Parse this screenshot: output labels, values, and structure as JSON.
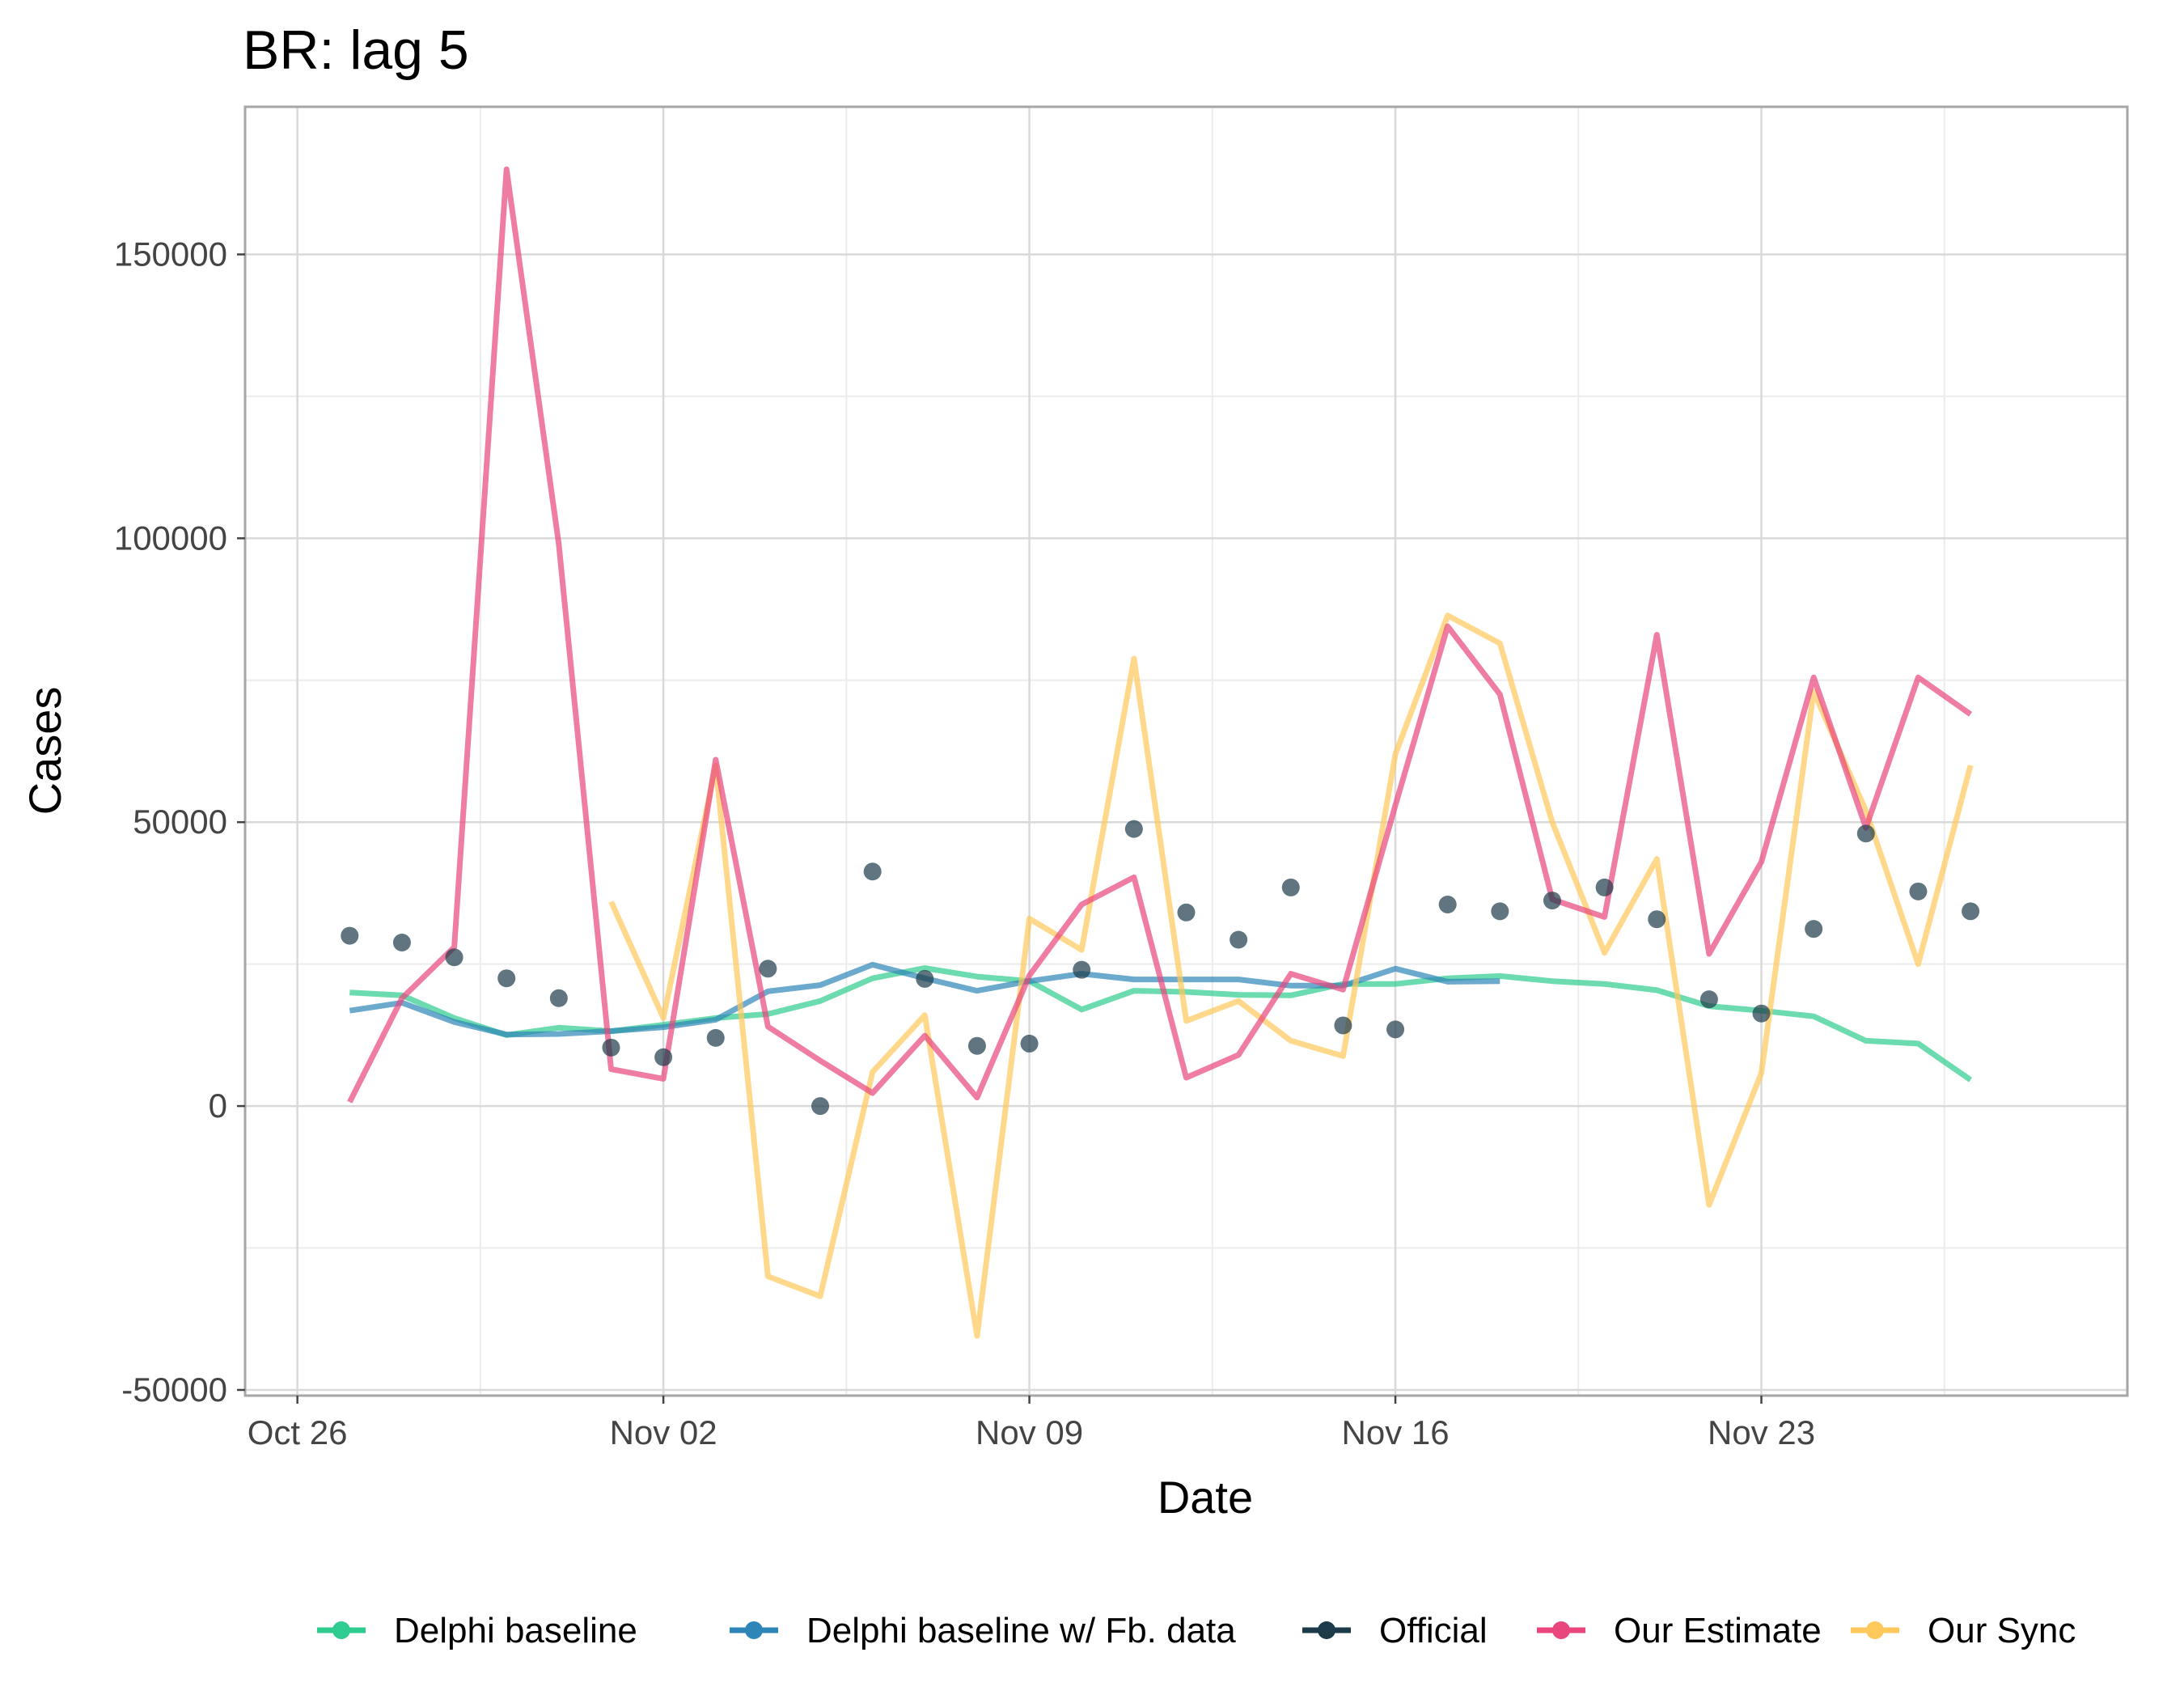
{
  "chart_data": {
    "type": "line",
    "title": "BR: lag 5",
    "xlabel": "Date",
    "ylabel": "Cases",
    "x_range": [
      "2020-10-25",
      "2020-11-30"
    ],
    "ylim": [
      -51000,
      176000
    ],
    "x_ticks": [
      {
        "date": "2020-10-26",
        "label": "Oct 26"
      },
      {
        "date": "2020-11-02",
        "label": "Nov 02"
      },
      {
        "date": "2020-11-09",
        "label": "Nov 09"
      },
      {
        "date": "2020-11-16",
        "label": "Nov 16"
      },
      {
        "date": "2020-11-23",
        "label": "Nov 23"
      }
    ],
    "y_ticks": [
      {
        "value": -50000,
        "label": "-50000"
      },
      {
        "value": 0,
        "label": "0"
      },
      {
        "value": 50000,
        "label": "50000"
      },
      {
        "value": 100000,
        "label": "100000"
      },
      {
        "value": 150000,
        "label": "150000"
      }
    ],
    "grid": true,
    "legend_position": "bottom",
    "series": [
      {
        "name": "Delphi baseline",
        "kind": "line",
        "color": "#2ecc8f",
        "x": [
          "2020-10-27",
          "2020-10-28",
          "2020-10-29",
          "2020-10-30",
          "2020-10-31",
          "2020-11-01",
          "2020-11-02",
          "2020-11-03",
          "2020-11-04",
          "2020-11-05",
          "2020-11-06",
          "2020-11-07",
          "2020-11-08",
          "2020-11-09",
          "2020-11-10",
          "2020-11-11",
          "2020-11-12",
          "2020-11-13",
          "2020-11-14",
          "2020-11-15",
          "2020-11-16",
          "2020-11-17",
          "2020-11-18",
          "2020-11-19",
          "2020-11-20",
          "2020-11-21",
          "2020-11-22",
          "2020-11-23",
          "2020-11-24",
          "2020-11-25",
          "2020-11-26",
          "2020-11-27"
        ],
        "y": [
          20000,
          19500,
          15500,
          12500,
          13800,
          13200,
          14300,
          15500,
          16200,
          18500,
          22500,
          24300,
          22800,
          22000,
          17000,
          20300,
          20100,
          19600,
          19500,
          21500,
          21500,
          22500,
          22900,
          22000,
          21500,
          20400,
          17600,
          16800,
          15800,
          11500,
          11000,
          4600
        ]
      },
      {
        "name": "Delphi baseline w/ Fb. data",
        "kind": "line",
        "color": "#2e86b8",
        "x": [
          "2020-10-27",
          "2020-10-28",
          "2020-10-29",
          "2020-10-30",
          "2020-10-31",
          "2020-11-01",
          "2020-11-02",
          "2020-11-03",
          "2020-11-04",
          "2020-11-05",
          "2020-11-06",
          "2020-11-07",
          "2020-11-08",
          "2020-11-09",
          "2020-11-10",
          "2020-11-11",
          "2020-11-12",
          "2020-11-13",
          "2020-11-14",
          "2020-11-15",
          "2020-11-16",
          "2020-11-17",
          "2020-11-18"
        ],
        "y": [
          16800,
          18200,
          14800,
          12600,
          12700,
          13200,
          13900,
          15200,
          20200,
          21300,
          24900,
          22500,
          20300,
          22000,
          23300,
          22300,
          22300,
          22300,
          21200,
          21200,
          24200,
          21900,
          22000
        ]
      },
      {
        "name": "Official",
        "kind": "points",
        "color": "#1d3a4a",
        "x": [
          "2020-10-27",
          "2020-10-28",
          "2020-10-29",
          "2020-10-30",
          "2020-10-31",
          "2020-11-01",
          "2020-11-02",
          "2020-11-03",
          "2020-11-04",
          "2020-11-05",
          "2020-11-06",
          "2020-11-07",
          "2020-11-08",
          "2020-11-09",
          "2020-11-10",
          "2020-11-11",
          "2020-11-12",
          "2020-11-13",
          "2020-11-14",
          "2020-11-15",
          "2020-11-16",
          "2020-11-17",
          "2020-11-18",
          "2020-11-19",
          "2020-11-20",
          "2020-11-21",
          "2020-11-22",
          "2020-11-23",
          "2020-11-24",
          "2020-11-25",
          "2020-11-26",
          "2020-11-27"
        ],
        "y": [
          30000,
          28800,
          26200,
          22500,
          19000,
          10300,
          8600,
          12000,
          24200,
          0,
          41300,
          22400,
          10600,
          11000,
          24000,
          48800,
          34100,
          29300,
          38500,
          14200,
          13500,
          35500,
          34300,
          36200,
          38500,
          32900,
          18800,
          16300,
          31200,
          48000,
          37800,
          34300
        ]
      },
      {
        "name": "Our Estimate",
        "kind": "line",
        "color": "#e8467c",
        "x": [
          "2020-10-27",
          "2020-10-28",
          "2020-10-29",
          "2020-10-30",
          "2020-10-31",
          "2020-11-01",
          "2020-11-02",
          "2020-11-03",
          "2020-11-04",
          "2020-11-05",
          "2020-11-06",
          "2020-11-07",
          "2020-11-08",
          "2020-11-09",
          "2020-11-10",
          "2020-11-11",
          "2020-11-12",
          "2020-11-13",
          "2020-11-14",
          "2020-11-15",
          "2020-11-16",
          "2020-11-17",
          "2020-11-18",
          "2020-11-19",
          "2020-11-20",
          "2020-11-21",
          "2020-11-22",
          "2020-11-23",
          "2020-11-24",
          "2020-11-25",
          "2020-11-26",
          "2020-11-27"
        ],
        "y": [
          700,
          19000,
          28000,
          165000,
          99000,
          6500,
          4800,
          61000,
          14000,
          8000,
          2300,
          12400,
          1500,
          23000,
          35500,
          40300,
          5000,
          9000,
          23300,
          20500,
          53000,
          84500,
          72500,
          36400,
          33300,
          83000,
          26800,
          43000,
          75500,
          49000,
          75500,
          69000
        ]
      },
      {
        "name": "Our Sync",
        "kind": "line",
        "color": "#ffc85a",
        "x": [
          "2020-11-01",
          "2020-11-02",
          "2020-11-03",
          "2020-11-04",
          "2020-11-05",
          "2020-11-06",
          "2020-11-07",
          "2020-11-08",
          "2020-11-09",
          "2020-11-10",
          "2020-11-11",
          "2020-11-12",
          "2020-11-13",
          "2020-11-14",
          "2020-11-15",
          "2020-11-16",
          "2020-11-17",
          "2020-11-18",
          "2020-11-19",
          "2020-11-20",
          "2020-11-21",
          "2020-11-22",
          "2020-11-23",
          "2020-11-24",
          "2020-11-25",
          "2020-11-26",
          "2020-11-27"
        ],
        "y": [
          36000,
          15500,
          60000,
          -30000,
          -33500,
          6000,
          16000,
          -40500,
          33000,
          27500,
          78800,
          15000,
          18500,
          11500,
          8800,
          62000,
          86400,
          81500,
          50000,
          27000,
          43500,
          -17400,
          5800,
          73000,
          52000,
          25000,
          60000
        ]
      }
    ]
  }
}
